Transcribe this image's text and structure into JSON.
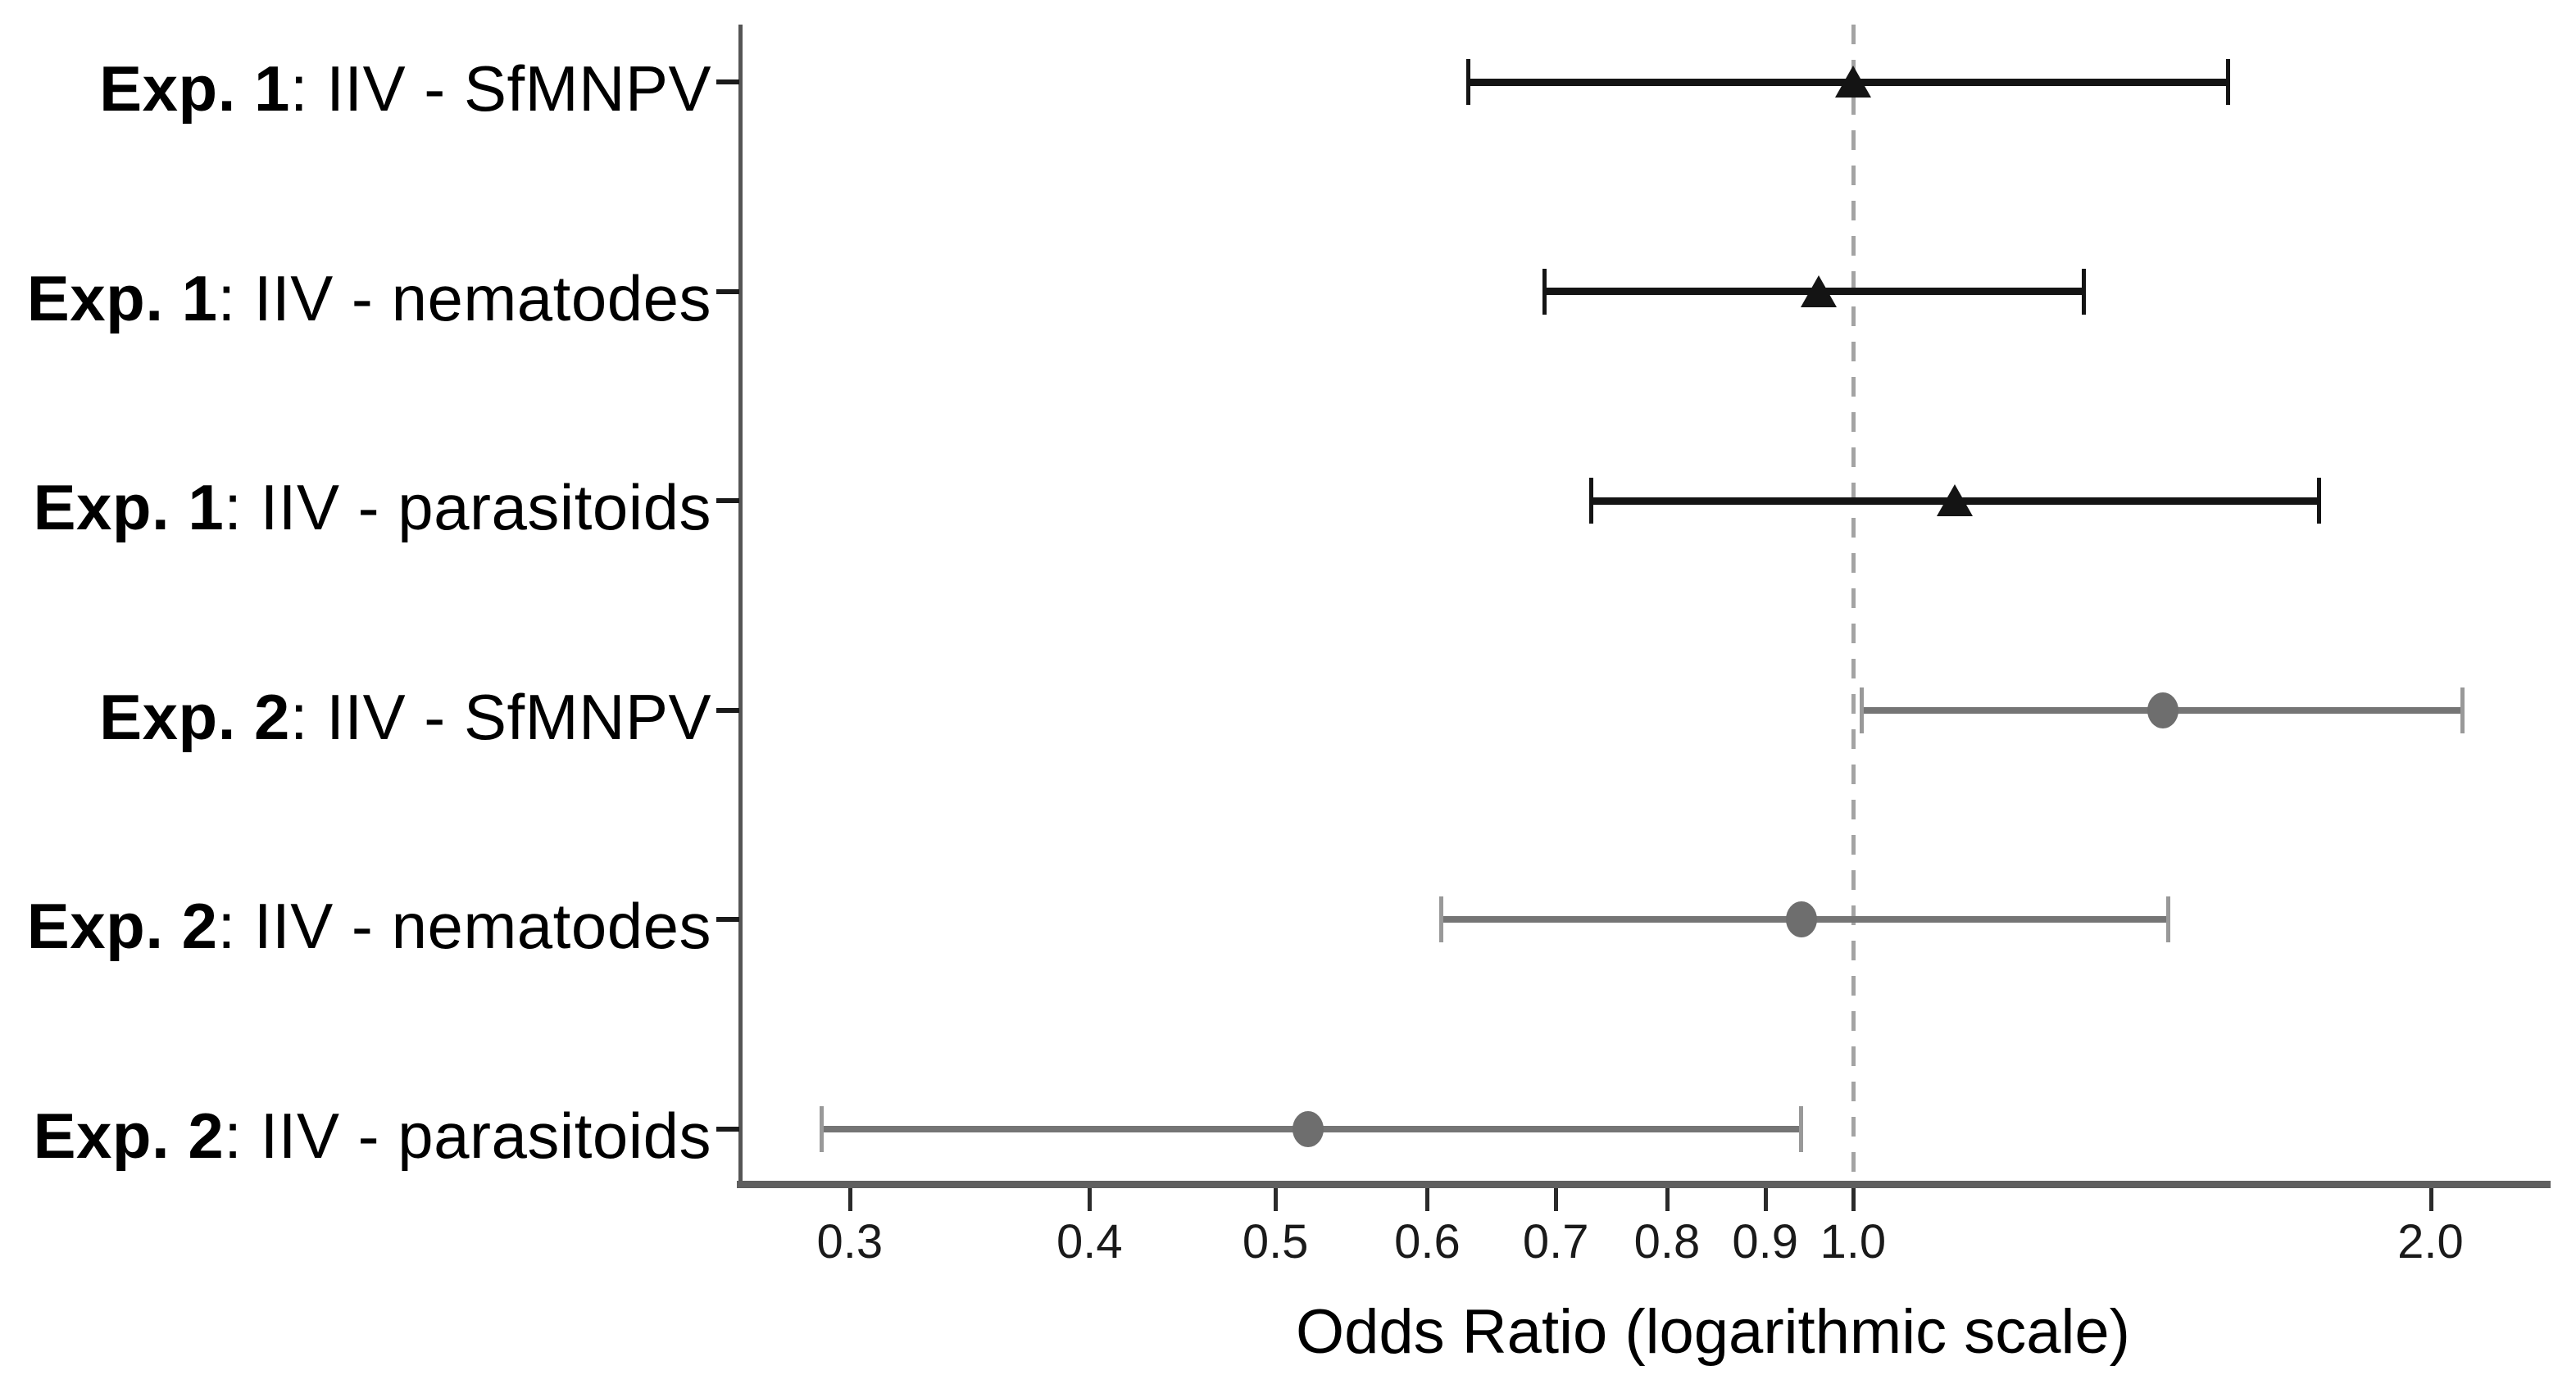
{
  "chart_data": {
    "type": "scatter",
    "subtype": "forest-plot",
    "title": "",
    "xlabel": "Odds Ratio (logarithmic scale)",
    "ylabel": "",
    "x_scale": "log10",
    "xlim": [
      0.263,
      2.31
    ],
    "x_ticks": [
      0.3,
      0.4,
      0.5,
      0.6,
      0.7,
      0.8,
      0.9,
      1.0,
      2.0
    ],
    "x_tick_labels": [
      "0.3",
      "0.4",
      "0.5",
      "0.6",
      "0.7",
      "0.8",
      "0.9",
      "1.0",
      "2.0"
    ],
    "reference_line_x": 1.0,
    "grid": false,
    "legend": null,
    "rows": [
      {
        "label_bold": "Exp. 1",
        "label_rest": ": IIV - SfMNPV",
        "or": 1.0,
        "ci_low": 0.63,
        "ci_high": 1.57,
        "group": "exp1",
        "marker": "triangle"
      },
      {
        "label_bold": "Exp. 1",
        "label_rest": ": IIV - nematodes",
        "or": 0.96,
        "ci_low": 0.69,
        "ci_high": 1.32,
        "group": "exp1",
        "marker": "triangle"
      },
      {
        "label_bold": "Exp. 1",
        "label_rest": ": IIV - parasitoids",
        "or": 1.13,
        "ci_low": 0.73,
        "ci_high": 1.75,
        "group": "exp1",
        "marker": "triangle"
      },
      {
        "label_bold": "Exp. 2",
        "label_rest": ": IIV - SfMNPV",
        "or": 1.45,
        "ci_low": 1.01,
        "ci_high": 2.08,
        "group": "exp2",
        "marker": "circle"
      },
      {
        "label_bold": "Exp. 2",
        "label_rest": ": IIV - nematodes",
        "or": 0.94,
        "ci_low": 0.61,
        "ci_high": 1.46,
        "group": "exp2",
        "marker": "circle"
      },
      {
        "label_bold": "Exp. 2",
        "label_rest": ": IIV - parasitoids",
        "or": 0.52,
        "ci_low": 0.29,
        "ci_high": 0.94,
        "group": "exp2",
        "marker": "circle"
      }
    ],
    "colors": {
      "exp1_line": "#141414",
      "exp1_cap": "#141414",
      "exp1_marker": "#141414",
      "exp2_line": "#757575",
      "exp2_cap": "#999999",
      "exp2_marker": "#6e6e6e",
      "reference_line": "#a3a3a3",
      "axis": "#5f5f5f",
      "tick": "#2b2b2b",
      "text": "#000000"
    }
  }
}
